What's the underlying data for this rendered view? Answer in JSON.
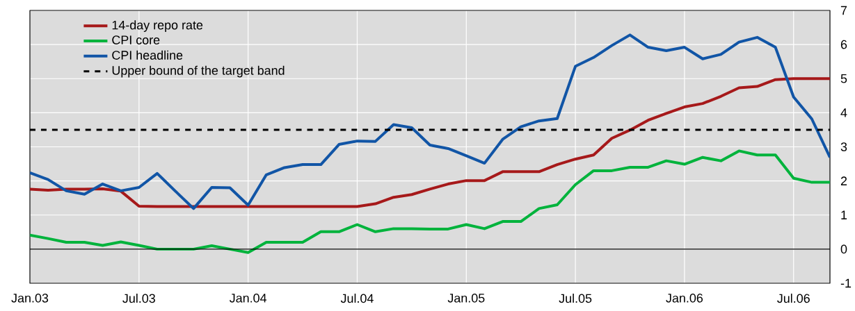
{
  "chart_data": {
    "type": "line",
    "x": [
      "2003-01",
      "2003-02",
      "2003-03",
      "2003-04",
      "2003-05",
      "2003-06",
      "2003-07",
      "2003-08",
      "2003-09",
      "2003-10",
      "2003-11",
      "2003-12",
      "2004-01",
      "2004-02",
      "2004-03",
      "2004-04",
      "2004-05",
      "2004-06",
      "2004-07",
      "2004-08",
      "2004-09",
      "2004-10",
      "2004-11",
      "2004-12",
      "2005-01",
      "2005-02",
      "2005-03",
      "2005-04",
      "2005-05",
      "2005-06",
      "2005-07",
      "2005-08",
      "2005-09",
      "2005-10",
      "2005-11",
      "2005-12",
      "2006-01",
      "2006-02",
      "2006-03",
      "2006-04",
      "2006-05",
      "2006-06",
      "2006-07",
      "2006-08",
      "2006-09"
    ],
    "series": [
      {
        "name": "14-day repo rate",
        "color": "#a6191a",
        "values": [
          1.76,
          1.73,
          1.76,
          1.76,
          1.77,
          1.7,
          1.26,
          1.25,
          1.25,
          1.25,
          1.25,
          1.25,
          1.25,
          1.25,
          1.25,
          1.25,
          1.25,
          1.25,
          1.25,
          1.33,
          1.52,
          1.6,
          1.76,
          1.91,
          2.01,
          2.01,
          2.27,
          2.27,
          2.27,
          2.48,
          2.64,
          2.76,
          3.25,
          3.49,
          3.78,
          3.98,
          4.17,
          4.27,
          4.48,
          4.73,
          4.77,
          4.97,
          5.0,
          5.0,
          5.0
        ]
      },
      {
        "name": "CPI core",
        "color": "#00b33c",
        "values": [
          0.41,
          0.31,
          0.2,
          0.2,
          0.11,
          0.21,
          0.11,
          0.0,
          0.0,
          0.0,
          0.1,
          0.0,
          -0.1,
          0.2,
          0.2,
          0.2,
          0.51,
          0.51,
          0.72,
          0.51,
          0.6,
          0.6,
          0.59,
          0.59,
          0.72,
          0.6,
          0.81,
          0.81,
          1.19,
          1.3,
          1.89,
          2.3,
          2.3,
          2.4,
          2.4,
          2.59,
          2.49,
          2.69,
          2.59,
          2.88,
          2.76,
          2.76,
          2.08,
          1.96,
          1.96
        ]
      },
      {
        "name": "CPI headline",
        "color": "#1155a6",
        "values": [
          2.24,
          2.04,
          1.71,
          1.61,
          1.91,
          1.71,
          1.81,
          2.22,
          1.7,
          1.19,
          1.81,
          1.8,
          1.29,
          2.18,
          2.39,
          2.48,
          2.48,
          3.07,
          3.17,
          3.16,
          3.65,
          3.56,
          3.05,
          2.95,
          2.74,
          2.52,
          3.22,
          3.59,
          3.76,
          3.83,
          5.36,
          5.62,
          5.97,
          6.28,
          5.92,
          5.82,
          5.92,
          5.58,
          5.71,
          6.07,
          6.21,
          5.92,
          4.46,
          3.82,
          2.69
        ]
      }
    ],
    "ref_lines": [
      {
        "axis": "y",
        "value": 3.5,
        "label": "Upper bound of the target band",
        "color": "#000000",
        "line_style": "dashed"
      },
      {
        "axis": "y",
        "value": 0,
        "color": "#000000",
        "line_style": "solid"
      }
    ],
    "xlim": [
      "2003-01",
      "2006-09"
    ],
    "xticks": [
      {
        "value": "2003-01",
        "label": "Jan.03"
      },
      {
        "value": "2003-07",
        "label": "Jul.03"
      },
      {
        "value": "2004-01",
        "label": "Jan.04"
      },
      {
        "value": "2004-07",
        "label": "Jul.04"
      },
      {
        "value": "2005-01",
        "label": "Jan.05"
      },
      {
        "value": "2005-07",
        "label": "Jul.05"
      },
      {
        "value": "2006-01",
        "label": "Jan.06"
      },
      {
        "value": "2006-07",
        "label": "Jul.06"
      }
    ],
    "ylim": [
      -1,
      7
    ],
    "yticks": [
      -1,
      0,
      1,
      2,
      3,
      4,
      5,
      6,
      7
    ],
    "grid": true,
    "legend": "top left",
    "line_style": "solid",
    "marker": "none"
  }
}
